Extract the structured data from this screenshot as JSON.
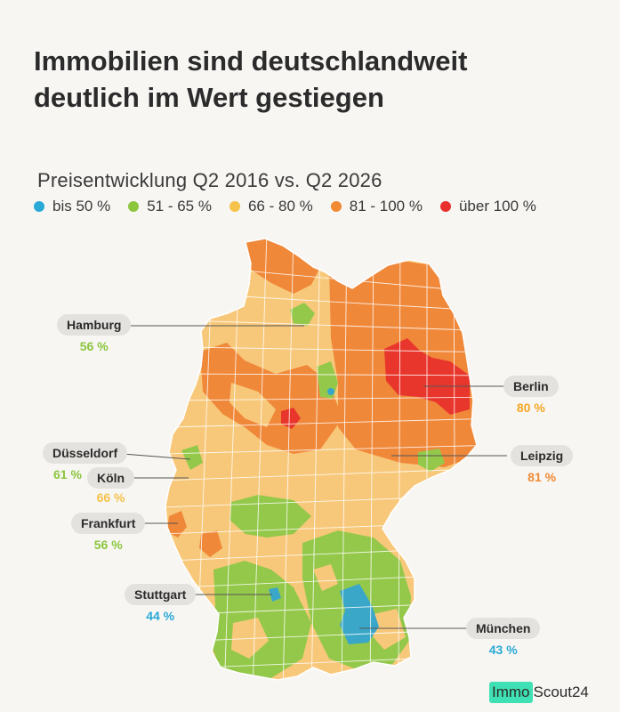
{
  "title_line1": "Immobilien sind deutschlandweit",
  "title_line2": "deutlich im Wert gestiegen",
  "subtitle": "Preisentwicklung Q2 2016 vs. Q2 2026",
  "legend": [
    {
      "label": "bis 50 %",
      "color": "#29a9d6"
    },
    {
      "label": "51 - 65 %",
      "color": "#8cc63e"
    },
    {
      "label": "66 - 80 %",
      "color": "#f5c24a"
    },
    {
      "label": "81 - 100 %",
      "color": "#f08a33"
    },
    {
      "label": "über 100 %",
      "color": "#e8312e"
    }
  ],
  "cities": [
    {
      "name": "Hamburg",
      "value": "56 %",
      "color": "#8cc63e"
    },
    {
      "name": "Berlin",
      "value": "80 %",
      "color": "#f5a623"
    },
    {
      "name": "Düsseldorf",
      "value": "61 %",
      "color": "#8cc63e"
    },
    {
      "name": "Köln",
      "value": "66 %",
      "color": "#f5c24a"
    },
    {
      "name": "Leipzig",
      "value": "81 %",
      "color": "#f08a33"
    },
    {
      "name": "Frankfurt",
      "value": "56 %",
      "color": "#8cc63e"
    },
    {
      "name": "Stuttgart",
      "value": "44 %",
      "color": "#29a9d6"
    },
    {
      "name": "München",
      "value": "43 %",
      "color": "#29a9d6"
    }
  ],
  "map_colors": {
    "base": "#f8c87a",
    "orange": "#f0883a",
    "red": "#e8362c",
    "green": "#94c84a",
    "blue": "#3aa6c8",
    "border": "#ffffff"
  },
  "logo": {
    "immo": "Immo",
    "scout": "Scout24"
  }
}
